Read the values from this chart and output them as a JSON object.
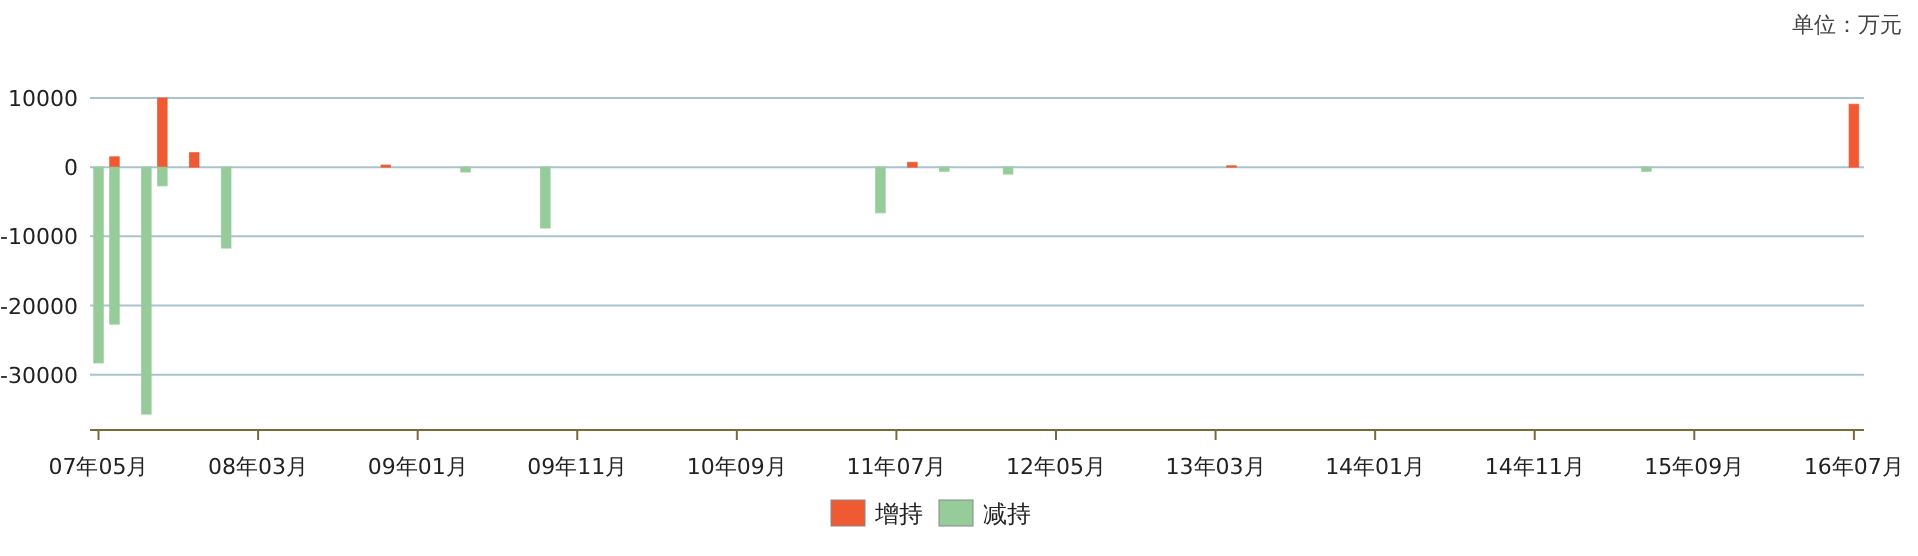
{
  "chart_data": {
    "type": "bar",
    "annotations": [
      "单位：万元"
    ],
    "xlim": [
      "2007-04-15",
      "2016-07-20"
    ],
    "ylim": [
      -38000,
      10000
    ],
    "yticks": [
      10000,
      0,
      -10000,
      -20000,
      -30000
    ],
    "xticks": [
      {
        "value": "2007-05",
        "label": "07年05月"
      },
      {
        "value": "2008-03",
        "label": "08年03月"
      },
      {
        "value": "2009-01",
        "label": "09年01月"
      },
      {
        "value": "2009-11",
        "label": "09年11月"
      },
      {
        "value": "2010-09",
        "label": "10年09月"
      },
      {
        "value": "2011-07",
        "label": "11年07月"
      },
      {
        "value": "2012-05",
        "label": "12年05月"
      },
      {
        "value": "2013-03",
        "label": "13年03月"
      },
      {
        "value": "2014-01",
        "label": "14年01月"
      },
      {
        "value": "2014-11",
        "label": "14年11月"
      },
      {
        "value": "2015-09",
        "label": "15年09月"
      },
      {
        "value": "2016-07",
        "label": "16年07月"
      }
    ],
    "grid": "y",
    "legend": "bottom",
    "series": [
      {
        "name": "增持",
        "color": "#f05a32",
        "x": [
          "2007-06",
          "2007-09",
          "2007-11",
          "2008-11",
          "2011-08",
          "2013-04",
          "2016-07"
        ],
        "values": [
          1500,
          10000,
          2100,
          300,
          700,
          200,
          9100
        ]
      },
      {
        "name": "减持",
        "color": "#96cc9a",
        "x": [
          "2007-05",
          "2007-06",
          "2007-08",
          "2007-09",
          "2008-01",
          "2009-04",
          "2009-09",
          "2011-06",
          "2011-10",
          "2012-02",
          "2015-06"
        ],
        "values": [
          -28300,
          -22700,
          -35700,
          -2700,
          -11700,
          -700,
          -8800,
          -6600,
          -600,
          -1000,
          -600
        ]
      }
    ]
  }
}
